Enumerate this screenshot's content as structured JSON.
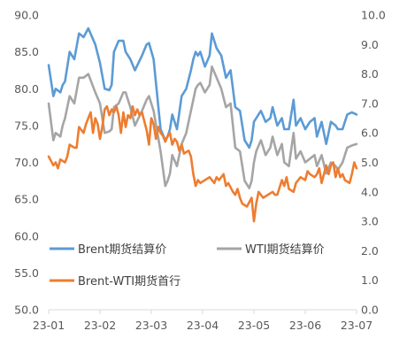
{
  "chart_data": {
    "type": "line",
    "title": "",
    "xlabel": "",
    "ylabel_left": "",
    "ylabel_right": "",
    "x_ticks": [
      "23-01",
      "23-02",
      "23-03",
      "23-04",
      "23-05",
      "23-06",
      "23-07"
    ],
    "left_axis": {
      "min": 50,
      "max": 90,
      "ticks": [
        "50.0",
        "55.0",
        "60.0",
        "65.0",
        "70.0",
        "75.0",
        "80.0",
        "85.0",
        "90.0"
      ]
    },
    "right_axis": {
      "min": 0,
      "max": 10,
      "ticks": [
        "0.0",
        "1.0",
        "2.0",
        "3.0",
        "4.0",
        "5.0",
        "6.0",
        "7.0",
        "8.0",
        "9.0",
        "10.0"
      ]
    },
    "x_range": [
      0,
      132
    ],
    "grid": false,
    "legend_position": "bottom-inside",
    "series": [
      {
        "name": "Brent期货结算价",
        "axis": "left",
        "color": "#5B9BD5",
        "x": [
          0,
          2,
          3,
          5,
          6,
          7,
          9,
          11,
          13,
          15,
          17,
          20,
          22,
          24,
          26,
          27,
          28,
          30,
          32,
          33,
          35,
          37,
          40,
          42,
          43,
          45,
          48,
          50,
          51,
          52,
          53,
          55,
          57,
          59,
          61,
          62,
          63,
          64,
          65,
          67,
          69,
          70,
          72,
          74,
          76,
          78,
          80,
          82,
          84,
          86,
          87,
          88,
          89,
          91,
          93,
          95,
          96,
          98,
          100,
          101,
          103,
          105,
          106,
          108,
          110,
          112,
          114,
          115,
          117,
          119,
          121,
          123,
          124,
          126,
          127,
          128,
          130,
          132
        ],
        "y": [
          83.2,
          79.0,
          80.0,
          79.5,
          80.5,
          81.0,
          85.0,
          84.0,
          87.5,
          87.0,
          88.2,
          86.0,
          83.5,
          80.0,
          79.8,
          80.5,
          85.0,
          86.5,
          86.5,
          85.0,
          84.0,
          82.5,
          84.5,
          86.0,
          86.2,
          84.0,
          74.5,
          73.0,
          73.5,
          74.5,
          76.5,
          74.5,
          79.0,
          80.0,
          82.5,
          84.0,
          85.0,
          84.5,
          85.0,
          83.0,
          84.5,
          87.5,
          85.5,
          84.5,
          81.5,
          82.5,
          77.5,
          77.0,
          73.0,
          72.0,
          73.0,
          75.5,
          76.0,
          77.0,
          75.5,
          76.0,
          77.5,
          75.0,
          76.0,
          74.5,
          74.5,
          78.5,
          75.0,
          76.0,
          74.5,
          75.5,
          76.0,
          73.5,
          75.5,
          72.5,
          75.5,
          75.0,
          74.5,
          74.5,
          75.5,
          76.5,
          76.8,
          76.5
        ]
      },
      {
        "name": "WTI期货结算价",
        "axis": "left",
        "color": "#A5A5A5",
        "x": [
          0,
          2,
          3,
          5,
          6,
          7,
          9,
          11,
          13,
          15,
          17,
          20,
          22,
          24,
          26,
          27,
          28,
          30,
          32,
          33,
          35,
          37,
          40,
          42,
          43,
          45,
          48,
          50,
          51,
          52,
          53,
          55,
          57,
          59,
          61,
          62,
          63,
          64,
          65,
          67,
          69,
          70,
          72,
          74,
          76,
          78,
          80,
          82,
          84,
          86,
          87,
          88,
          89,
          91,
          93,
          95,
          96,
          98,
          100,
          101,
          103,
          105,
          106,
          108,
          110,
          112,
          114,
          115,
          117,
          119,
          121,
          123,
          124,
          126,
          127,
          128,
          130,
          132
        ],
        "y": [
          78.0,
          73.0,
          74.0,
          73.5,
          75.0,
          76.0,
          79.0,
          78.0,
          81.5,
          81.5,
          82.0,
          79.5,
          78.0,
          74.0,
          74.2,
          74.5,
          77.5,
          78.0,
          79.5,
          79.5,
          77.5,
          75.0,
          77.0,
          78.5,
          79.0,
          77.0,
          71.5,
          66.8,
          67.5,
          68.5,
          71.0,
          69.5,
          72.5,
          74.0,
          77.0,
          78.5,
          80.0,
          80.5,
          80.8,
          79.5,
          80.5,
          83.0,
          81.5,
          80.0,
          77.5,
          78.0,
          72.0,
          71.5,
          67.5,
          66.5,
          67.5,
          70.0,
          71.5,
          73.0,
          71.0,
          72.0,
          73.5,
          71.0,
          72.5,
          70.0,
          69.5,
          74.0,
          70.5,
          71.5,
          70.0,
          70.5,
          71.0,
          69.5,
          71.0,
          68.5,
          70.0,
          69.5,
          69.0,
          70.0,
          71.0,
          72.0,
          72.3,
          72.5
        ]
      },
      {
        "name": "Brent-WTI期货首行",
        "axis": "right",
        "color": "#ED7D31",
        "x": [
          0,
          2,
          3,
          4,
          5,
          7,
          8,
          9,
          11,
          12,
          13,
          15,
          16,
          17,
          18,
          19,
          20,
          21,
          22,
          23,
          24,
          25,
          26,
          27,
          28,
          29,
          30,
          31,
          32,
          33,
          34,
          35,
          36,
          37,
          38,
          39,
          40,
          41,
          42,
          43,
          44,
          45,
          46,
          47,
          48,
          49,
          50,
          51,
          52,
          53,
          54,
          55,
          56,
          57,
          58,
          60,
          61,
          62,
          63,
          64,
          65,
          67,
          69,
          71,
          72,
          73,
          74,
          75,
          76,
          77,
          79,
          80,
          81,
          82,
          83,
          85,
          87,
          88,
          89,
          90,
          92,
          94,
          96,
          97,
          98,
          100,
          101,
          102,
          103,
          105,
          106,
          107,
          108,
          110,
          111,
          112,
          114,
          115,
          116,
          117,
          118,
          119,
          120,
          121,
          122,
          123,
          124,
          125,
          126,
          127,
          129,
          130,
          131,
          132
        ],
        "y": [
          5.2,
          4.9,
          5.0,
          4.8,
          5.1,
          5.0,
          5.2,
          5.6,
          5.5,
          5.5,
          6.2,
          6.0,
          6.3,
          6.5,
          6.7,
          6.0,
          6.5,
          6.3,
          5.8,
          6.2,
          6.8,
          6.9,
          6.6,
          6.8,
          6.7,
          6.9,
          6.6,
          6.0,
          6.7,
          6.2,
          6.6,
          6.5,
          6.9,
          6.6,
          6.8,
          6.6,
          6.7,
          6.4,
          6.1,
          5.6,
          6.5,
          6.3,
          5.8,
          6.2,
          6.0,
          5.9,
          5.7,
          5.9,
          6.0,
          5.6,
          5.8,
          5.7,
          5.4,
          5.6,
          5.3,
          5.4,
          5.2,
          4.6,
          4.2,
          4.4,
          4.3,
          4.4,
          4.5,
          4.3,
          4.5,
          4.4,
          4.5,
          4.6,
          4.2,
          4.3,
          4.0,
          3.9,
          4.1,
          3.8,
          3.6,
          3.5,
          3.8,
          3.0,
          3.6,
          4.0,
          3.8,
          3.9,
          4.0,
          3.9,
          3.9,
          4.4,
          4.2,
          4.5,
          4.1,
          4.0,
          4.3,
          4.4,
          4.5,
          4.4,
          4.7,
          4.6,
          4.5,
          4.6,
          4.8,
          4.3,
          4.6,
          4.9,
          4.6,
          4.9,
          5.0,
          4.5,
          4.8,
          4.5,
          4.6,
          4.4,
          4.3,
          4.6,
          5.0,
          4.8
        ]
      }
    ]
  }
}
